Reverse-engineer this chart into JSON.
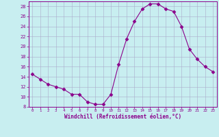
{
  "x": [
    0,
    1,
    2,
    3,
    4,
    5,
    6,
    7,
    8,
    9,
    10,
    11,
    12,
    13,
    14,
    15,
    16,
    17,
    18,
    19,
    20,
    21,
    22,
    23
  ],
  "y": [
    14.5,
    13.5,
    12.5,
    12.0,
    11.5,
    10.5,
    10.5,
    9.0,
    8.5,
    8.5,
    10.5,
    16.5,
    21.5,
    25.0,
    27.5,
    28.5,
    28.5,
    27.5,
    27.0,
    24.0,
    19.5,
    17.5,
    16.0,
    15.0
  ],
  "line_color": "#8b008b",
  "marker": "D",
  "marker_size": 2.5,
  "bg_color": "#c8eef0",
  "grid_color": "#aaaacc",
  "xlabel": "Windchill (Refroidissement éolien,°C)",
  "xlabel_color": "#8b008b",
  "tick_color": "#8b008b",
  "ylim": [
    8,
    29
  ],
  "xlim": [
    -0.5,
    23.5
  ],
  "yticks": [
    8,
    10,
    12,
    14,
    16,
    18,
    20,
    22,
    24,
    26,
    28
  ],
  "xticks": [
    0,
    1,
    2,
    3,
    4,
    5,
    6,
    7,
    8,
    9,
    10,
    11,
    12,
    13,
    14,
    15,
    16,
    17,
    18,
    19,
    20,
    21,
    22,
    23
  ]
}
